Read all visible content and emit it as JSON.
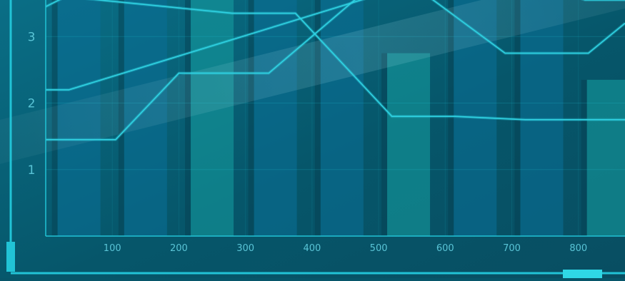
{
  "chart_data": {
    "type": "line",
    "title": "",
    "xlabel": "",
    "ylabel": "",
    "x_ticks": [
      100,
      200,
      300,
      400,
      500,
      600,
      700,
      800
    ],
    "y_ticks": [
      1,
      2,
      3
    ],
    "xlim": [
      0,
      870
    ],
    "ylim": [
      0,
      3.55
    ],
    "grid": true,
    "background_bars": [
      {
        "x": 50,
        "value": 3.6
      },
      {
        "x": 150,
        "value": 3.6
      },
      {
        "x": 250,
        "value": 3.6
      },
      {
        "x": 345,
        "value": 3.6
      },
      {
        "x": 445,
        "value": 3.6
      },
      {
        "x": 545,
        "value": 2.75
      },
      {
        "x": 645,
        "value": 3.6
      },
      {
        "x": 745,
        "value": 3.6
      },
      {
        "x": 845,
        "value": 2.35
      }
    ],
    "series": [
      {
        "x": [
          0,
          105,
          200,
          335,
          470,
          575,
          690,
          815,
          870
        ],
        "values": [
          1.45,
          1.45,
          2.45,
          2.45,
          3.6,
          3.6,
          2.75,
          2.75,
          3.2
        ]
      },
      {
        "x": [
          0,
          30,
          280,
          375,
          520,
          615,
          720,
          870
        ],
        "values": [
          3.45,
          3.6,
          3.35,
          3.35,
          1.8,
          1.8,
          1.75,
          1.75
        ]
      },
      {
        "x": [
          0,
          35,
          490,
          570,
          700,
          795,
          810,
          870
        ],
        "values": [
          2.2,
          2.2,
          3.6,
          3.6,
          3.6,
          3.6,
          3.55,
          3.55
        ]
      }
    ],
    "colors": {
      "background": "#07566a",
      "axis": "#21c3d6",
      "line": "#2fd2e2",
      "tick_text": "#59c4d6",
      "bar_dark": "#0a6e94",
      "bar_teal": "#16a0a3"
    }
  }
}
